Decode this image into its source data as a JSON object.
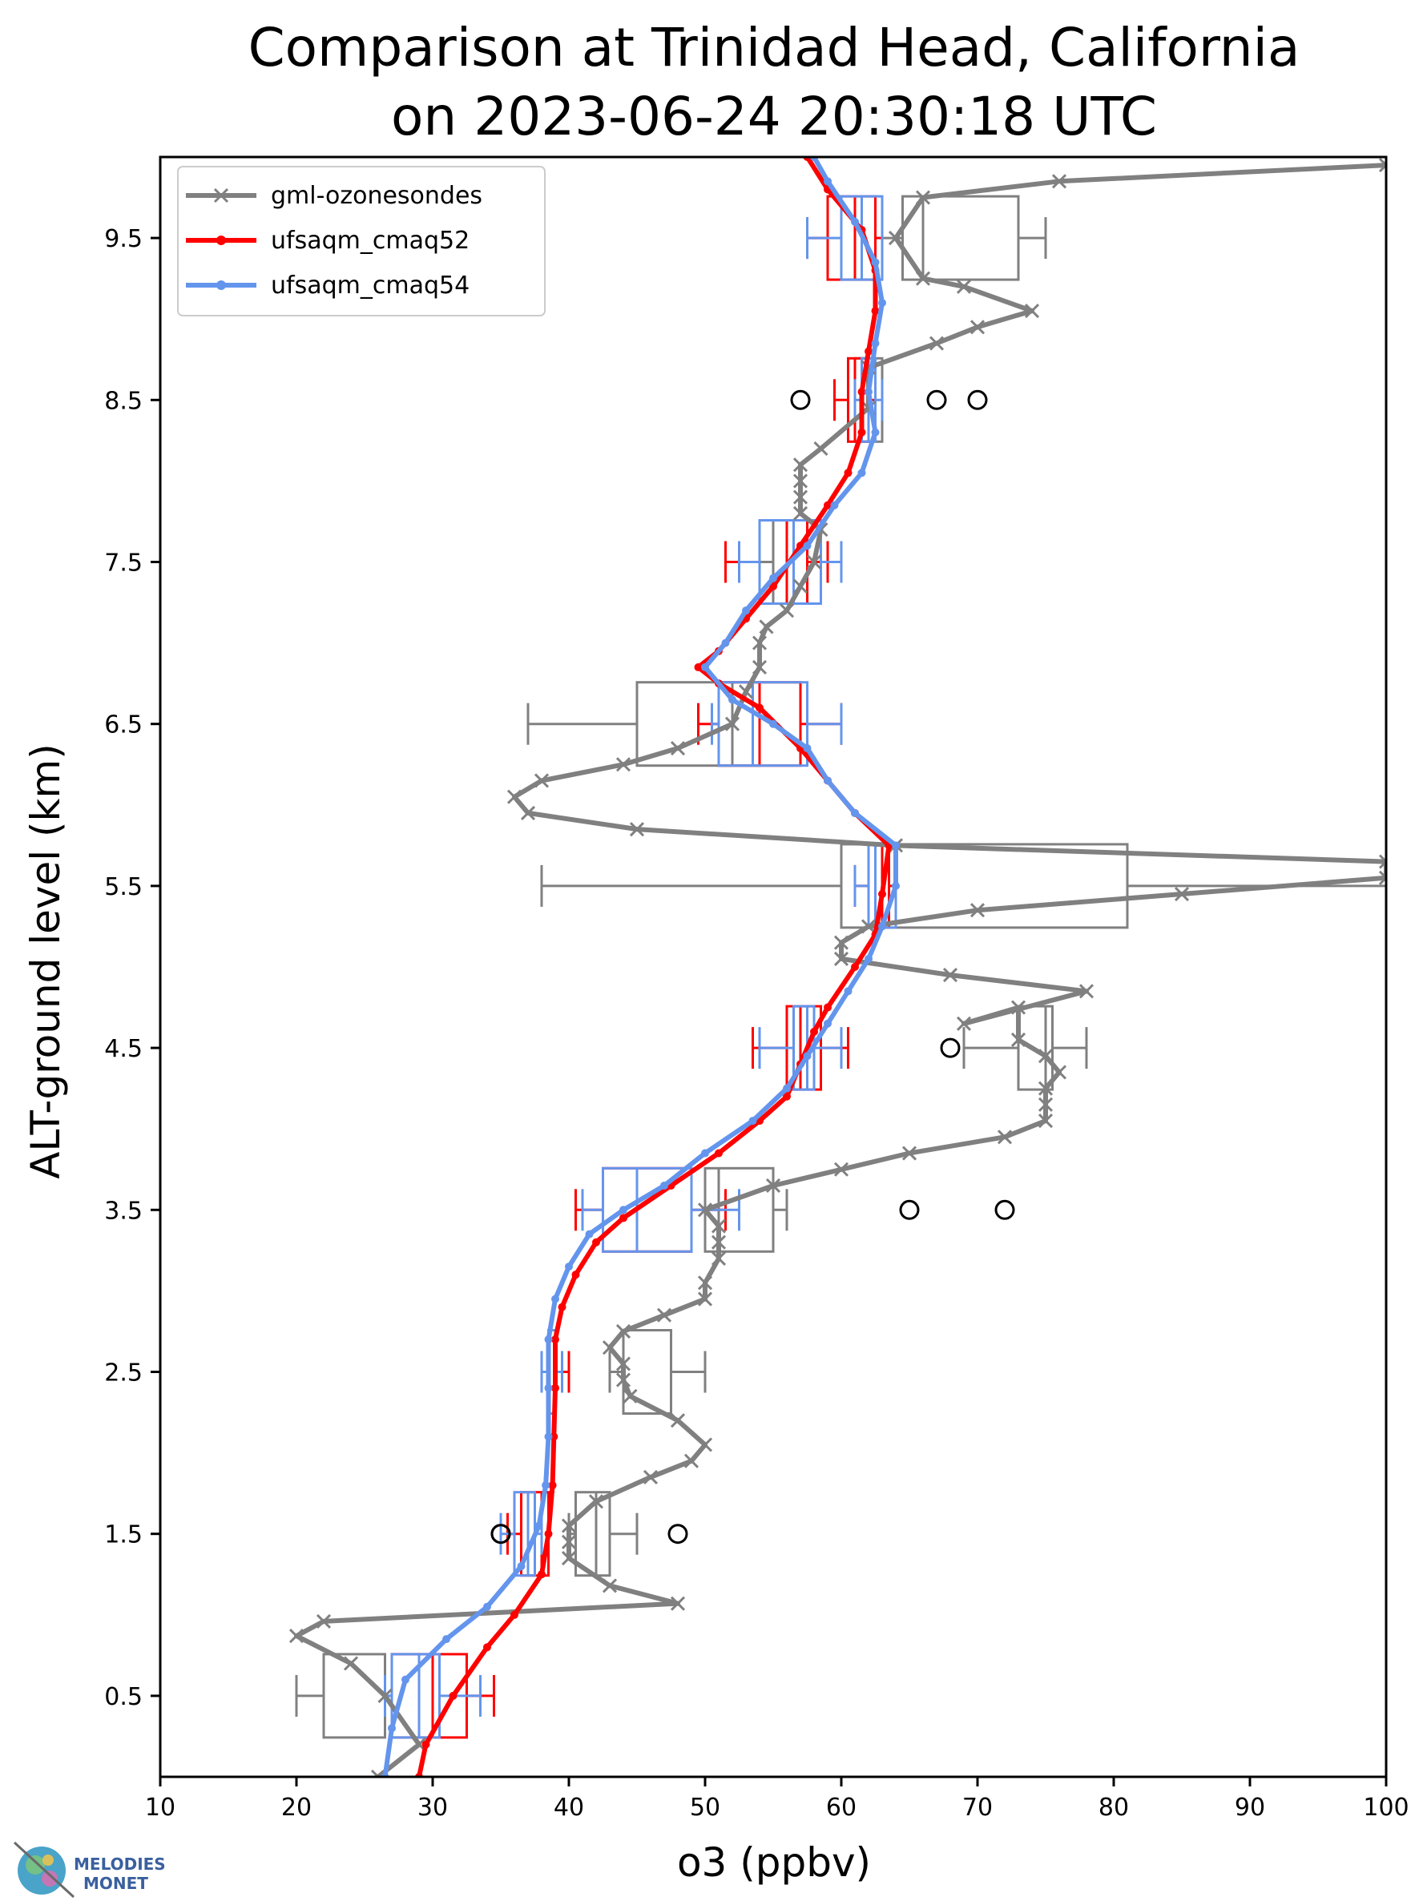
{
  "chart_data": {
    "type": "line",
    "title_line1": "Comparison at Trinidad Head, California",
    "title_line2": "on 2023-06-24 20:30:18 UTC",
    "xlabel": "o3 (ppbv)",
    "ylabel": "ALT-ground level (km)",
    "xlim": [
      10,
      100
    ],
    "ylim": [
      0,
      10
    ],
    "x_ticks": [
      10,
      20,
      30,
      40,
      50,
      60,
      70,
      80,
      90,
      100
    ],
    "y_ticks": [
      0.5,
      1.5,
      2.5,
      3.5,
      4.5,
      5.5,
      6.5,
      7.5,
      8.5,
      9.5
    ],
    "legend_position": "top-left",
    "grid": false,
    "series": [
      {
        "name": "gml-ozonesondes",
        "color": "#808080",
        "marker": "x",
        "points": [
          [
            26,
            0.0
          ],
          [
            29,
            0.2
          ],
          [
            26.5,
            0.5
          ],
          [
            24,
            0.7
          ],
          [
            20,
            0.87
          ],
          [
            22,
            0.96
          ],
          [
            48,
            1.07
          ],
          [
            43,
            1.18
          ],
          [
            40,
            1.35
          ],
          [
            40,
            1.45
          ],
          [
            40,
            1.55
          ],
          [
            42,
            1.7
          ],
          [
            46,
            1.85
          ],
          [
            49,
            1.95
          ],
          [
            50,
            2.05
          ],
          [
            48,
            2.2
          ],
          [
            44.5,
            2.35
          ],
          [
            44,
            2.45
          ],
          [
            44,
            2.55
          ],
          [
            43,
            2.65
          ],
          [
            44,
            2.75
          ],
          [
            47,
            2.85
          ],
          [
            50,
            2.95
          ],
          [
            50,
            3.05
          ],
          [
            51,
            3.2
          ],
          [
            51,
            3.3
          ],
          [
            51,
            3.4
          ],
          [
            50,
            3.5
          ],
          [
            55,
            3.65
          ],
          [
            60,
            3.75
          ],
          [
            65,
            3.85
          ],
          [
            72,
            3.95
          ],
          [
            75,
            4.05
          ],
          [
            75,
            4.15
          ],
          [
            75,
            4.25
          ],
          [
            76,
            4.35
          ],
          [
            75,
            4.45
          ],
          [
            73,
            4.55
          ],
          [
            73,
            4.75
          ],
          [
            69,
            4.65
          ],
          [
            78,
            4.85
          ],
          [
            68,
            4.95
          ],
          [
            60,
            5.05
          ],
          [
            60,
            5.15
          ],
          [
            62,
            5.25
          ],
          [
            70,
            5.35
          ],
          [
            85,
            5.45
          ],
          [
            100,
            5.55
          ],
          [
            100,
            5.65
          ],
          [
            64,
            5.75
          ],
          [
            45,
            5.85
          ],
          [
            37,
            5.95
          ],
          [
            36,
            6.05
          ],
          [
            38,
            6.15
          ],
          [
            44,
            6.25
          ],
          [
            48,
            6.35
          ],
          [
            52,
            6.5
          ],
          [
            53,
            6.7
          ],
          [
            54,
            6.85
          ],
          [
            54,
            7.0
          ],
          [
            54.5,
            7.1
          ],
          [
            56,
            7.2
          ],
          [
            57,
            7.35
          ],
          [
            58,
            7.5
          ],
          [
            58.5,
            7.7
          ],
          [
            57,
            7.8
          ],
          [
            57,
            7.9
          ],
          [
            57,
            8.0
          ],
          [
            57,
            8.1
          ],
          [
            58.5,
            8.2
          ],
          [
            62,
            8.45
          ],
          [
            62,
            8.7
          ],
          [
            67,
            8.85
          ],
          [
            70,
            8.95
          ],
          [
            74,
            9.05
          ],
          [
            69,
            9.2
          ],
          [
            66,
            9.25
          ],
          [
            64,
            9.5
          ],
          [
            66,
            9.75
          ],
          [
            76,
            9.85
          ],
          [
            100,
            9.95
          ]
        ]
      },
      {
        "name": "ufsaqm_cmaq52",
        "color": "#ff0000",
        "marker": "dot",
        "points": [
          [
            29,
            0.0
          ],
          [
            29.5,
            0.2
          ],
          [
            31.5,
            0.5
          ],
          [
            34,
            0.8
          ],
          [
            36,
            1.0
          ],
          [
            38,
            1.25
          ],
          [
            38.5,
            1.5
          ],
          [
            38.8,
            1.8
          ],
          [
            38.9,
            2.1
          ],
          [
            39,
            2.4
          ],
          [
            39,
            2.7
          ],
          [
            39.5,
            2.9
          ],
          [
            40.5,
            3.1
          ],
          [
            42,
            3.3
          ],
          [
            44,
            3.45
          ],
          [
            47.5,
            3.65
          ],
          [
            51,
            3.85
          ],
          [
            54,
            4.05
          ],
          [
            56,
            4.2
          ],
          [
            57,
            4.4
          ],
          [
            58,
            4.6
          ],
          [
            59,
            4.75
          ],
          [
            61,
            5.0
          ],
          [
            62.5,
            5.2
          ],
          [
            63,
            5.45
          ],
          [
            63.5,
            5.75
          ],
          [
            61,
            5.95
          ],
          [
            59,
            6.15
          ],
          [
            57,
            6.35
          ],
          [
            54,
            6.6
          ],
          [
            51,
            6.75
          ],
          [
            49.5,
            6.85
          ],
          [
            51,
            6.95
          ],
          [
            53,
            7.15
          ],
          [
            55,
            7.35
          ],
          [
            57,
            7.6
          ],
          [
            59,
            7.85
          ],
          [
            60.5,
            8.05
          ],
          [
            61.5,
            8.3
          ],
          [
            61.5,
            8.55
          ],
          [
            62,
            8.8
          ],
          [
            62.5,
            9.05
          ],
          [
            62.5,
            9.3
          ],
          [
            61.5,
            9.55
          ],
          [
            59,
            9.8
          ],
          [
            57.5,
            10.0
          ]
        ]
      },
      {
        "name": "ufsaqm_cmaq54",
        "color": "#6495ed",
        "marker": "dot",
        "points": [
          [
            26.5,
            0.0
          ],
          [
            27,
            0.3
          ],
          [
            28,
            0.6
          ],
          [
            31,
            0.85
          ],
          [
            34,
            1.05
          ],
          [
            36.5,
            1.3
          ],
          [
            37.8,
            1.55
          ],
          [
            38.3,
            1.8
          ],
          [
            38.5,
            2.1
          ],
          [
            38.5,
            2.4
          ],
          [
            38.5,
            2.7
          ],
          [
            39,
            2.95
          ],
          [
            40,
            3.15
          ],
          [
            41.5,
            3.35
          ],
          [
            44,
            3.5
          ],
          [
            47,
            3.65
          ],
          [
            50,
            3.85
          ],
          [
            53.5,
            4.05
          ],
          [
            56,
            4.25
          ],
          [
            57.5,
            4.45
          ],
          [
            59,
            4.65
          ],
          [
            60.5,
            4.85
          ],
          [
            62,
            5.05
          ],
          [
            63,
            5.25
          ],
          [
            64,
            5.5
          ],
          [
            64,
            5.75
          ],
          [
            61,
            5.95
          ],
          [
            59,
            6.15
          ],
          [
            57.5,
            6.35
          ],
          [
            55,
            6.5
          ],
          [
            52,
            6.65
          ],
          [
            50,
            6.85
          ],
          [
            51.5,
            7.0
          ],
          [
            53,
            7.2
          ],
          [
            55,
            7.4
          ],
          [
            57.5,
            7.6
          ],
          [
            59.5,
            7.85
          ],
          [
            61.5,
            8.05
          ],
          [
            62.5,
            8.3
          ],
          [
            62,
            8.55
          ],
          [
            62.5,
            8.85
          ],
          [
            63,
            9.1
          ],
          [
            62.5,
            9.35
          ],
          [
            61,
            9.6
          ],
          [
            59,
            9.85
          ],
          [
            58,
            10.0
          ]
        ]
      }
    ],
    "boxes": [
      {
        "series": "gml-ozonesondes",
        "y": 9.5,
        "whislo": 63,
        "q1": 64.5,
        "med": 66,
        "q3": 73,
        "whishi": 75,
        "fliers": []
      },
      {
        "series": "gml-ozonesondes",
        "y": 8.5,
        "whislo": 61,
        "q1": 61,
        "med": 61.5,
        "q3": 63,
        "whishi": 63,
        "fliers": [
          57,
          67,
          70
        ]
      },
      {
        "series": "gml-ozonesondes",
        "y": 7.5,
        "whislo": 54,
        "q1": 55,
        "med": 56,
        "q3": 57.5,
        "whishi": 58.5,
        "fliers": []
      },
      {
        "series": "gml-ozonesondes",
        "y": 6.5,
        "whislo": 37,
        "q1": 45,
        "med": 52,
        "q3": 54,
        "whishi": 54,
        "fliers": []
      },
      {
        "series": "gml-ozonesondes",
        "y": 5.5,
        "whislo": 38,
        "q1": 60,
        "med": 63,
        "q3": 81,
        "whishi": 100,
        "fliers": []
      },
      {
        "series": "gml-ozonesondes",
        "y": 4.5,
        "whislo": 69,
        "q1": 73,
        "med": 75,
        "q3": 75.5,
        "whishi": 78,
        "fliers": [
          68
        ]
      },
      {
        "series": "gml-ozonesondes",
        "y": 3.5,
        "whislo": 50,
        "q1": 50,
        "med": 51,
        "q3": 55,
        "whishi": 56,
        "fliers": [
          65,
          72
        ]
      },
      {
        "series": "gml-ozonesondes",
        "y": 2.5,
        "whislo": 43,
        "q1": 44,
        "med": 44,
        "q3": 47.5,
        "whishi": 50,
        "fliers": []
      },
      {
        "series": "gml-ozonesondes",
        "y": 1.5,
        "whislo": 40,
        "q1": 40.5,
        "med": 42,
        "q3": 43,
        "whishi": 45,
        "fliers": [
          35,
          48
        ]
      },
      {
        "series": "gml-ozonesondes",
        "y": 0.5,
        "whislo": 20,
        "q1": 22,
        "med": 26.5,
        "q3": 26.5,
        "whishi": 27,
        "fliers": []
      },
      {
        "series": "ufsaqm_cmaq52",
        "y": 9.5,
        "whislo": 57.5,
        "q1": 59,
        "med": 61,
        "q3": 62.5,
        "whishi": 63,
        "fliers": []
      },
      {
        "series": "ufsaqm_cmaq52",
        "y": 8.5,
        "whislo": 59.5,
        "q1": 60.5,
        "med": 61,
        "q3": 62,
        "whishi": 62.5,
        "fliers": []
      },
      {
        "series": "ufsaqm_cmaq52",
        "y": 7.5,
        "whislo": 51.5,
        "q1": 54,
        "med": 56,
        "q3": 57.5,
        "whishi": 59,
        "fliers": []
      },
      {
        "series": "ufsaqm_cmaq52",
        "y": 6.5,
        "whislo": 49.5,
        "q1": 51,
        "med": 54,
        "q3": 57,
        "whishi": 60,
        "fliers": []
      },
      {
        "series": "ufsaqm_cmaq52",
        "y": 5.5,
        "whislo": 61,
        "q1": 62,
        "med": 63,
        "q3": 63.5,
        "whishi": 64,
        "fliers": []
      },
      {
        "series": "ufsaqm_cmaq52",
        "y": 4.5,
        "whislo": 53.5,
        "q1": 56,
        "med": 57,
        "q3": 58.5,
        "whishi": 60.5,
        "fliers": []
      },
      {
        "series": "ufsaqm_cmaq52",
        "y": 3.5,
        "whislo": 40.5,
        "q1": 42.5,
        "med": 45,
        "q3": 49,
        "whishi": 51.5,
        "fliers": []
      },
      {
        "series": "ufsaqm_cmaq52",
        "y": 2.5,
        "whislo": 38.5,
        "q1": 38.5,
        "med": 39,
        "q3": 39,
        "whishi": 40,
        "fliers": []
      },
      {
        "series": "ufsaqm_cmaq52",
        "y": 1.5,
        "whislo": 35.5,
        "q1": 36.5,
        "med": 38,
        "q3": 38.5,
        "whishi": 38.5,
        "fliers": []
      },
      {
        "series": "ufsaqm_cmaq52",
        "y": 0.5,
        "whislo": 27,
        "q1": 27,
        "med": 30,
        "q3": 32.5,
        "whishi": 34.5,
        "fliers": []
      },
      {
        "series": "ufsaqm_cmaq54",
        "y": 9.5,
        "whislo": 57.5,
        "q1": 60,
        "med": 61.5,
        "q3": 63,
        "whishi": 63,
        "fliers": []
      },
      {
        "series": "ufsaqm_cmaq54",
        "y": 8.5,
        "whislo": 61,
        "q1": 61.5,
        "med": 62,
        "q3": 62.5,
        "whishi": 63,
        "fliers": []
      },
      {
        "series": "ufsaqm_cmaq54",
        "y": 7.5,
        "whislo": 52.5,
        "q1": 54,
        "med": 56.5,
        "q3": 58.5,
        "whishi": 60,
        "fliers": []
      },
      {
        "series": "ufsaqm_cmaq54",
        "y": 6.5,
        "whislo": 50.5,
        "q1": 51,
        "med": 53.5,
        "q3": 57.5,
        "whishi": 60,
        "fliers": []
      },
      {
        "series": "ufsaqm_cmaq54",
        "y": 5.5,
        "whislo": 61,
        "q1": 62,
        "med": 62.5,
        "q3": 64,
        "whishi": 64,
        "fliers": []
      },
      {
        "series": "ufsaqm_cmaq54",
        "y": 4.5,
        "whislo": 54,
        "q1": 56.5,
        "med": 57.5,
        "q3": 58,
        "whishi": 60,
        "fliers": []
      },
      {
        "series": "ufsaqm_cmaq54",
        "y": 3.5,
        "whislo": 41,
        "q1": 42.5,
        "med": 45,
        "q3": 49,
        "whishi": 52.5,
        "fliers": []
      },
      {
        "series": "ufsaqm_cmaq54",
        "y": 2.5,
        "whislo": 38,
        "q1": 38.5,
        "med": 38.5,
        "q3": 39,
        "whishi": 39.5,
        "fliers": []
      },
      {
        "series": "ufsaqm_cmaq54",
        "y": 1.5,
        "whislo": 35,
        "q1": 36,
        "med": 37,
        "q3": 37.5,
        "whishi": 38,
        "fliers": [
          35
        ]
      },
      {
        "series": "ufsaqm_cmaq54",
        "y": 0.5,
        "whislo": 26.5,
        "q1": 27,
        "med": 29,
        "q3": 30.5,
        "whishi": 33.5,
        "fliers": []
      }
    ]
  },
  "logo": {
    "line1": "MELODIES",
    "line2": "MONET"
  }
}
